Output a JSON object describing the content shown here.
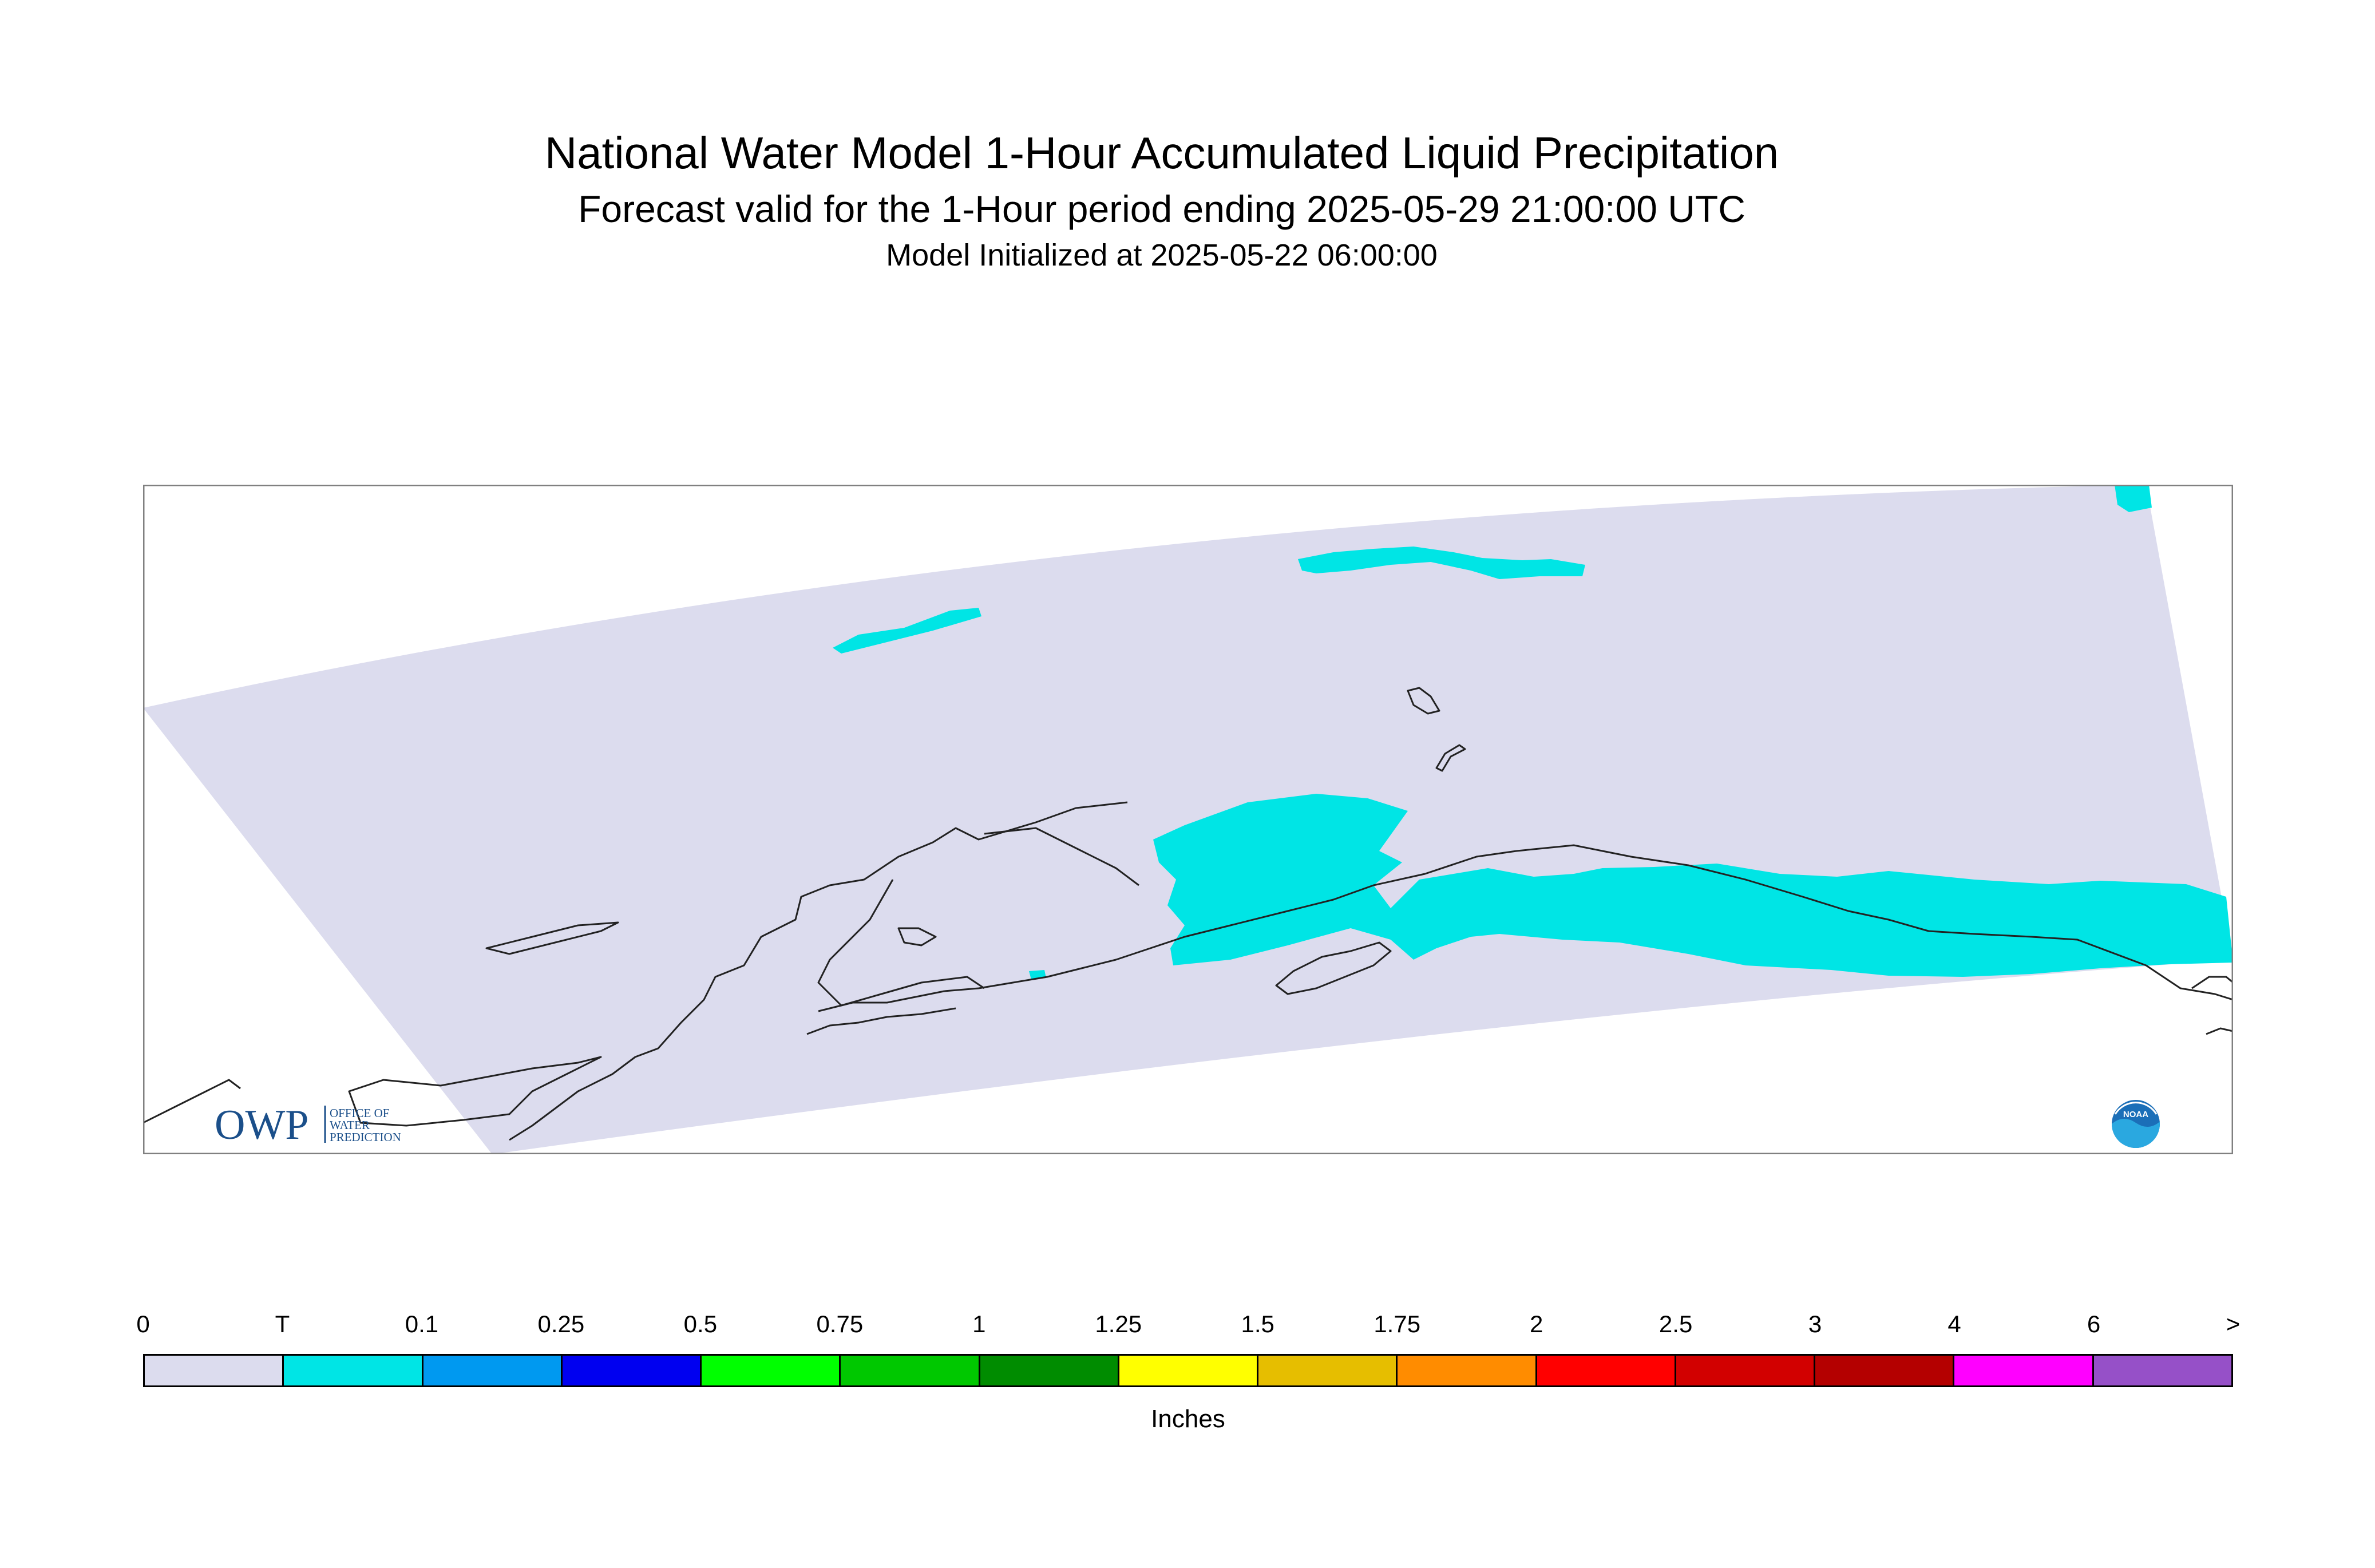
{
  "header": {
    "title": "National Water Model 1-Hour Accumulated Liquid Precipitation",
    "subtitle": "Forecast valid for the 1-Hour period ending 2025-05-29 21:00:00 UTC",
    "init": "Model Initialized at 2025-05-22 06:00:00"
  },
  "map": {
    "region": "Alaska",
    "domain_fill_color": "#dcdcee",
    "precip_color": "#00e5e5",
    "coastline_color": "#222222",
    "owp_logo": {
      "letters": "OWP",
      "text_lines": [
        "OFFICE OF",
        "WATER",
        "PREDICTION"
      ],
      "color": "#1b4f8a"
    },
    "noaa_logo": {
      "icon": "noaa-logo-icon",
      "text": "NOAA"
    }
  },
  "colorbar": {
    "tick_labels": [
      "0",
      "T",
      "0.1",
      "0.25",
      "0.5",
      "0.75",
      "1",
      "1.25",
      "1.5",
      "1.75",
      "2",
      "2.5",
      "3",
      "4",
      "6",
      ">"
    ],
    "colors": [
      "#dcdcee",
      "#00e5e5",
      "#0099f0",
      "#0000f0",
      "#00ff00",
      "#00c800",
      "#008c00",
      "#ffff00",
      "#e6be00",
      "#ff8c00",
      "#ff0000",
      "#d20000",
      "#b40000",
      "#ff00ff",
      "#9650c8"
    ],
    "units": "Inches"
  }
}
